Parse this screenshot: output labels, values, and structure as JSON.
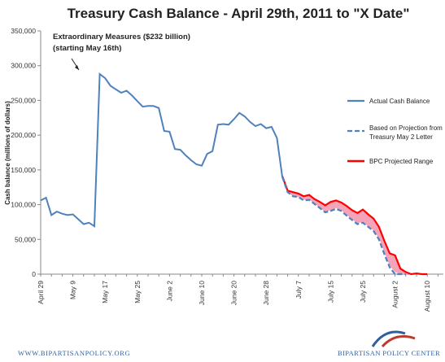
{
  "footer": {
    "url": "WWW.BIPARTISANPOLICY.ORG",
    "org": "BIPARTISAN POLICY CENTER"
  },
  "colors": {
    "actual": "#4f81bd",
    "projection": "#4f81bd",
    "range_line": "#ff0000",
    "range_fill": "#f4a3b8",
    "logo_blue": "#2f5f9e",
    "logo_red": "#c0392b"
  },
  "chart_data": {
    "type": "line",
    "title": "Treasury Cash Balance - April 29th, 2011 to \"X Date\"",
    "ylabel": "Cash balance (millions of dollars)",
    "ylim": [
      0,
      350000
    ],
    "yticks": [
      0,
      50000,
      100000,
      150000,
      200000,
      250000,
      300000,
      350000
    ],
    "ytick_labels": [
      "0",
      "50,000",
      "100,000",
      "150,000",
      "200,000",
      "250,000",
      "300,000",
      "350,000"
    ],
    "x_categories": [
      "April 29",
      "May 9",
      "May 17",
      "May 25",
      "June 2",
      "June 10",
      "June 20",
      "June 28",
      "July 7",
      "July 15",
      "July 25",
      "August 2",
      "August 10"
    ],
    "x_category_index": [
      0,
      6,
      12,
      18,
      24,
      30,
      36,
      42,
      48,
      54,
      60,
      66,
      72
    ],
    "grid": false,
    "legend_position": "right",
    "annotation": {
      "text_line1": "Extraordinary Measures ($232 billion)",
      "text_line2": "(starting May 16th)"
    },
    "series": [
      {
        "name": "Actual Cash Balance",
        "style": "solid",
        "x": [
          0,
          1,
          2,
          3,
          4,
          5,
          6,
          7,
          8,
          9,
          10,
          11,
          12,
          13,
          14,
          15,
          16,
          17,
          18,
          19,
          20,
          21,
          22,
          23,
          24,
          25,
          26,
          27,
          28,
          29,
          30,
          31,
          32,
          33,
          34,
          35,
          36,
          37,
          38,
          39,
          40,
          41,
          42,
          43,
          44
        ],
        "y": [
          106000,
          110000,
          85000,
          90000,
          87000,
          85000,
          86000,
          79000,
          72000,
          74000,
          69000,
          288000,
          282000,
          271000,
          266000,
          261000,
          264000,
          257000,
          249000,
          241000,
          242000,
          242000,
          239000,
          206000,
          205000,
          180000,
          179000,
          171000,
          164000,
          158000,
          156000,
          173000,
          177000,
          215000,
          216000,
          215000,
          223000,
          232000,
          227000,
          219000,
          213000,
          216000,
          210000,
          212000,
          196000
        ]
      },
      {
        "name": "Based on Projection from Treasury May 2 Letter",
        "style": "dashed",
        "x": [
          45,
          46,
          47,
          48,
          49,
          50,
          51,
          52,
          53,
          54,
          55,
          56,
          57,
          58,
          59,
          60,
          61,
          62,
          63,
          64,
          65,
          66,
          67,
          68
        ],
        "y": [
          140000,
          118000,
          112000,
          111000,
          106000,
          107000,
          101000,
          95000,
          89000,
          91000,
          94000,
          91000,
          84000,
          78000,
          72000,
          74000,
          68000,
          62000,
          50000,
          29000,
          10000,
          0,
          -5000,
          0
        ]
      },
      {
        "name": "BPC Projected Range",
        "style": "band",
        "x": [
          45,
          46,
          47,
          48,
          49,
          50,
          51,
          52,
          53,
          54,
          55,
          56,
          57,
          58,
          59,
          60,
          61,
          62,
          63,
          64,
          65,
          66,
          67,
          68,
          69,
          70,
          71,
          72
        ],
        "upper": [
          141000,
          120000,
          118000,
          116000,
          112000,
          114000,
          108000,
          104000,
          99000,
          104000,
          106000,
          103000,
          98000,
          92000,
          88000,
          93000,
          86000,
          80000,
          68000,
          48000,
          30000,
          27000,
          8000,
          3000,
          0,
          1000,
          0,
          0
        ],
        "lower": [
          141000,
          118000,
          112000,
          111000,
          107000,
          108000,
          101000,
          96000,
          89000,
          92000,
          95000,
          92000,
          85000,
          79000,
          73000,
          75000,
          69000,
          63000,
          52000,
          32000,
          12000,
          3000,
          0,
          0,
          0,
          0,
          0,
          0
        ]
      }
    ]
  }
}
